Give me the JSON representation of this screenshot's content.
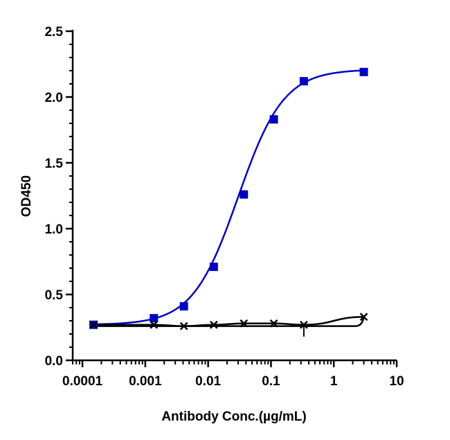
{
  "chart_data": {
    "type": "scatter",
    "xlabel": "Antibody Conc.(µg/mL)",
    "ylabel": "OD450",
    "x_scale": "log",
    "xlim": [
      7e-05,
      10
    ],
    "ylim": [
      0,
      2.5
    ],
    "x_ticks": [
      {
        "value": 0.0001,
        "label": "0.0001"
      },
      {
        "value": 0.001,
        "label": "0.001"
      },
      {
        "value": 0.01,
        "label": "0.01"
      },
      {
        "value": 0.1,
        "label": "0.1"
      },
      {
        "value": 1,
        "label": "1"
      },
      {
        "value": 10,
        "label": "10"
      }
    ],
    "y_ticks": [
      {
        "value": 0.0,
        "label": "0.0"
      },
      {
        "value": 0.5,
        "label": "0.5"
      },
      {
        "value": 1.0,
        "label": "1.0"
      },
      {
        "value": 1.5,
        "label": "1.5"
      },
      {
        "value": 2.0,
        "label": "2.0"
      },
      {
        "value": 2.5,
        "label": "2.5"
      }
    ],
    "grid": false,
    "legend": false,
    "series": [
      {
        "color": "#0000c0",
        "marker": "square",
        "fit": "4PL",
        "fit_params": {
          "bottom": 0.27,
          "top": 2.21,
          "ec50": 0.03,
          "hill": 1.2
        },
        "x": [
          0.00015,
          0.00137,
          0.00412,
          0.0123,
          0.037,
          0.111,
          0.333,
          3
        ],
        "y": [
          0.27,
          0.32,
          0.41,
          0.71,
          1.26,
          1.83,
          2.12,
          2.19
        ]
      },
      {
        "color": "#000000",
        "marker": "cross",
        "fit": "curve",
        "x": [
          0.00015,
          0.00137,
          0.00412,
          0.0123,
          0.037,
          0.111,
          0.333,
          3
        ],
        "y": [
          0.27,
          0.27,
          0.26,
          0.27,
          0.28,
          0.28,
          0.27,
          0.33
        ]
      }
    ]
  }
}
